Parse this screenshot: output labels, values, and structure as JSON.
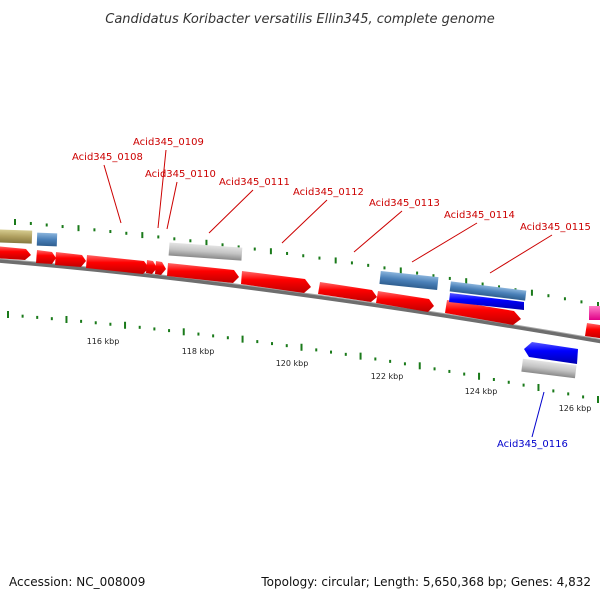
{
  "map": {
    "title": "Candidatus Koribacter versatilis Ellin345, complete genome",
    "accession": "Accession: NC_008009",
    "summary": "Topology: circular; Length: 5,650,368 bp; Genes: 4,832"
  },
  "colors": {
    "forward_cds": "#ff0000",
    "reverse_cds": "#0000ff",
    "trna": "#b0a060",
    "rrna": "#4a80b8",
    "gray_feature": "#bbbbbb",
    "pink_feature": "#ff1aa0",
    "backbone": "#808080",
    "tick": "#1a7a1a",
    "forward_label": "#cc0000",
    "reverse_label": "#0000cc"
  },
  "ticks": [
    {
      "label": "116 kbp"
    },
    {
      "label": "118 kbp"
    },
    {
      "label": "120 kbp"
    },
    {
      "label": "122 kbp"
    },
    {
      "label": "124 kbp"
    },
    {
      "label": "126 kbp"
    }
  ],
  "gene_labels": [
    {
      "text": "Acid345_0108",
      "strand": "forward"
    },
    {
      "text": "Acid345_0109",
      "strand": "forward"
    },
    {
      "text": "Acid345_0110",
      "strand": "forward"
    },
    {
      "text": "Acid345_0111",
      "strand": "forward"
    },
    {
      "text": "Acid345_0112",
      "strand": "forward"
    },
    {
      "text": "Acid345_0113",
      "strand": "forward"
    },
    {
      "text": "Acid345_0114",
      "strand": "forward"
    },
    {
      "text": "Acid345_0115",
      "strand": "forward"
    },
    {
      "text": "Acid345_0116",
      "strand": "reverse"
    }
  ]
}
